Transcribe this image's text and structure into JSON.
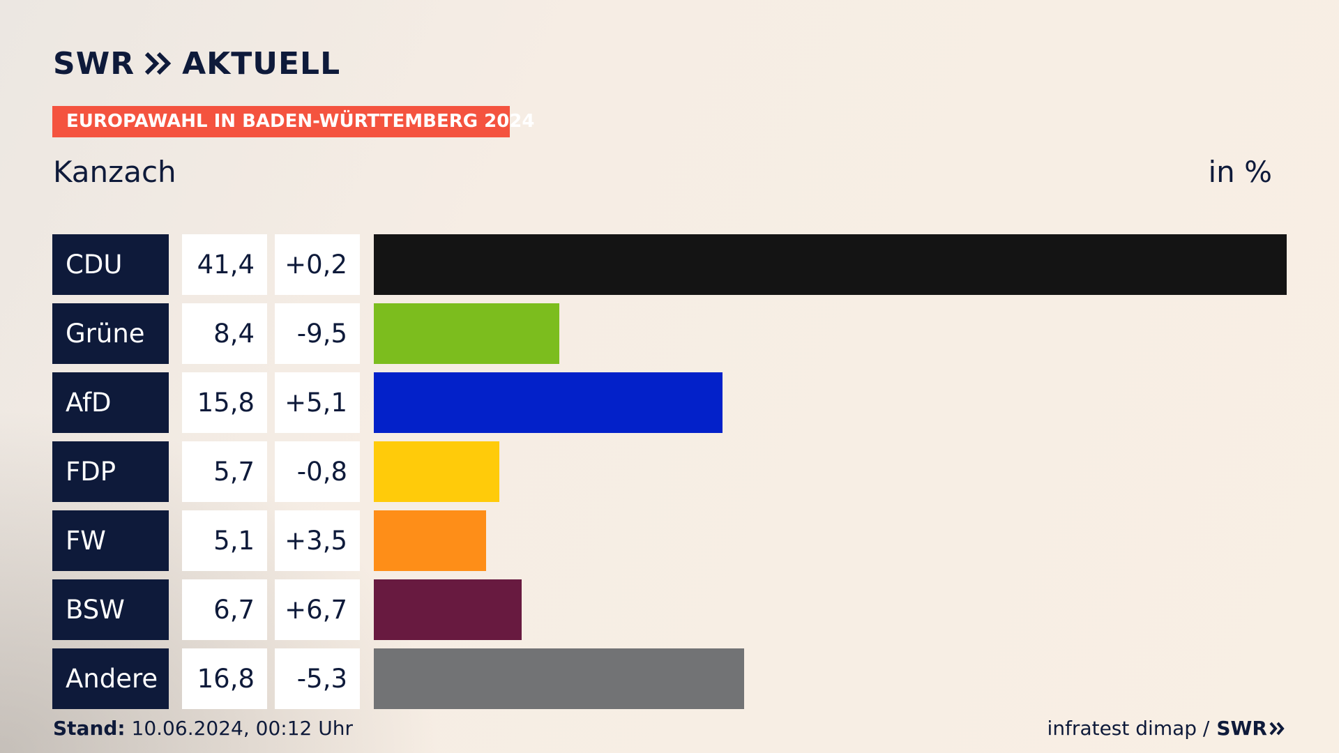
{
  "brand": {
    "swr": "SWR",
    "aktuell": "AKTUELL"
  },
  "badge": "EUROPAWAHL IN BADEN-WÜRTTEMBERG 2024",
  "place": "Kanzach",
  "unit": "in %",
  "footer": {
    "stand_label": "Stand:",
    "stand_value": "10.06.2024, 00:12 Uhr",
    "source": "infratest dimap /",
    "source_brand": "SWR"
  },
  "chart_data": {
    "type": "bar",
    "categories": [
      "CDU",
      "Grüne",
      "AfD",
      "FDP",
      "FW",
      "BSW",
      "Andere"
    ],
    "values": [
      41.4,
      8.4,
      15.8,
      5.7,
      5.1,
      6.7,
      16.8
    ],
    "value_labels": [
      "41,4",
      "8,4",
      "15,8",
      "5,7",
      "5,1",
      "6,7",
      "16,8"
    ],
    "changes": [
      0.2,
      -9.5,
      5.1,
      -0.8,
      3.5,
      6.7,
      -5.3
    ],
    "change_labels": [
      "+0,2",
      "-9,5",
      "+5,1",
      "-0,8",
      "+3,5",
      "+6,7",
      "-5,3"
    ],
    "colors": [
      "#141414",
      "#7cbd1e",
      "#0321c9",
      "#ffcb0a",
      "#fe8e18",
      "#681a40",
      "#727375"
    ],
    "title": "Kanzach",
    "ylabel": "in %",
    "orientation": "horizontal",
    "xlim": [
      0,
      41.4
    ],
    "grid": false,
    "legend": "none"
  }
}
